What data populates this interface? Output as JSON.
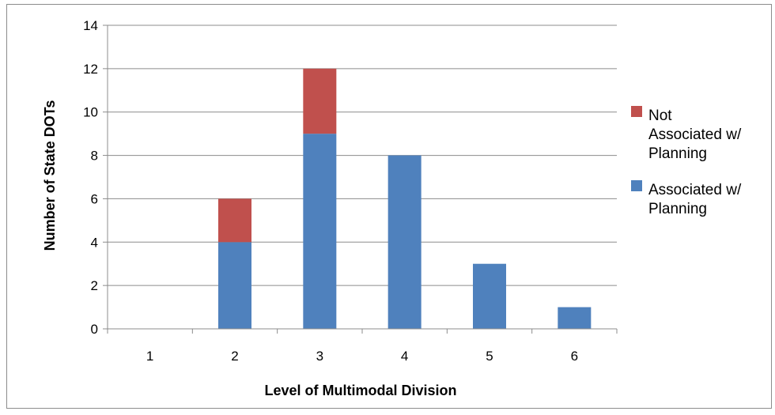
{
  "chart_data": {
    "type": "bar",
    "stacked": true,
    "categories": [
      "1",
      "2",
      "3",
      "4",
      "5",
      "6"
    ],
    "series": [
      {
        "name": "Associated w/ Planning",
        "values": [
          0,
          4,
          9,
          8,
          3,
          1
        ],
        "color": "#4f81bd"
      },
      {
        "name": "Not Associated w/ Planning",
        "values": [
          0,
          2,
          3,
          0,
          0,
          0
        ],
        "color": "#c0504d"
      }
    ],
    "title": "",
    "xlabel": "Level of Multimodal Division",
    "ylabel": "Number of State DOTs",
    "ylim": [
      0,
      14
    ],
    "yticks": [
      0,
      2,
      4,
      6,
      8,
      10,
      12,
      14
    ],
    "grid": true,
    "legend_position": "right",
    "legend": [
      {
        "lines": [
          "Not",
          "Associated w/",
          "Planning"
        ],
        "color": "#c0504d"
      },
      {
        "lines": [
          "Associated w/",
          "Planning"
        ],
        "color": "#4f81bd"
      }
    ]
  }
}
